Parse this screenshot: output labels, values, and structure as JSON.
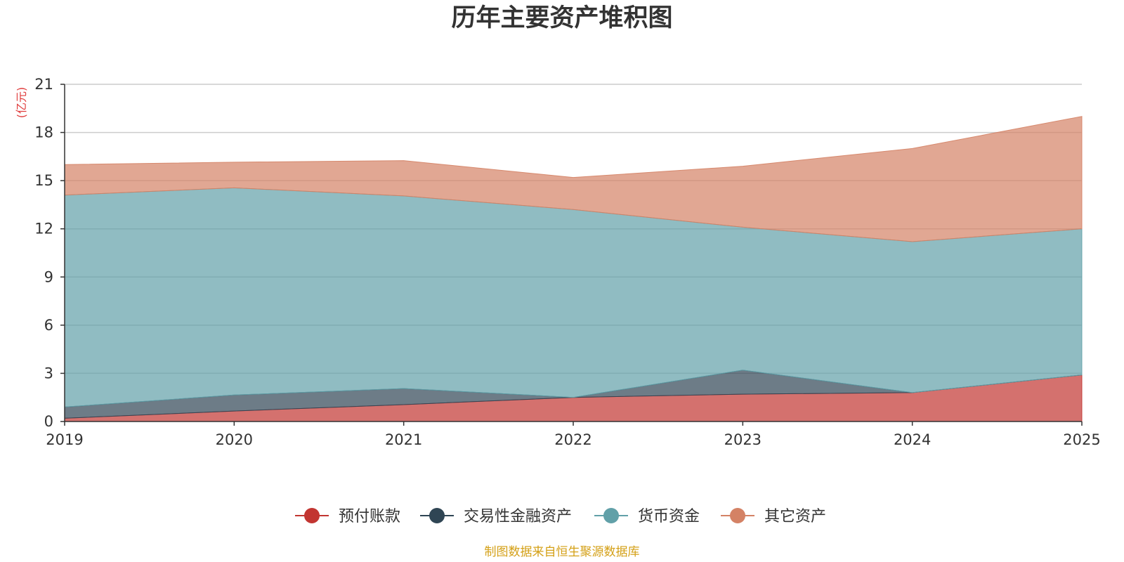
{
  "chart_data": {
    "type": "area",
    "stacked": true,
    "title": "历年主要资产堆积图",
    "ylabel": "(亿元)",
    "xlabel": "",
    "x": [
      "2019",
      "2020",
      "2021",
      "2022",
      "2023",
      "2024",
      "2025"
    ],
    "ylim": [
      0,
      21
    ],
    "yticks": [
      "0",
      "3",
      "6",
      "9",
      "12",
      "15",
      "18",
      "21"
    ],
    "grid": true,
    "legend_position": "bottom",
    "series": [
      {
        "name": "预付账款",
        "color": "#c23531",
        "values": [
          0.2,
          0.65,
          1.05,
          1.5,
          1.7,
          1.8,
          2.9
        ]
      },
      {
        "name": "交易性金融资产",
        "color": "#2f4554",
        "values": [
          0.7,
          1.0,
          1.0,
          0.0,
          1.5,
          0.0,
          0.0
        ]
      },
      {
        "name": "货币资金",
        "color": "#61a0a8",
        "values": [
          13.2,
          12.9,
          12.0,
          11.7,
          8.9,
          9.4,
          9.1
        ]
      },
      {
        "name": "其它资产",
        "color": "#d48265",
        "values": [
          1.9,
          1.6,
          2.2,
          2.0,
          3.8,
          5.8,
          7.0
        ]
      }
    ]
  },
  "source_note": "制图数据来自恒生聚源数据库"
}
